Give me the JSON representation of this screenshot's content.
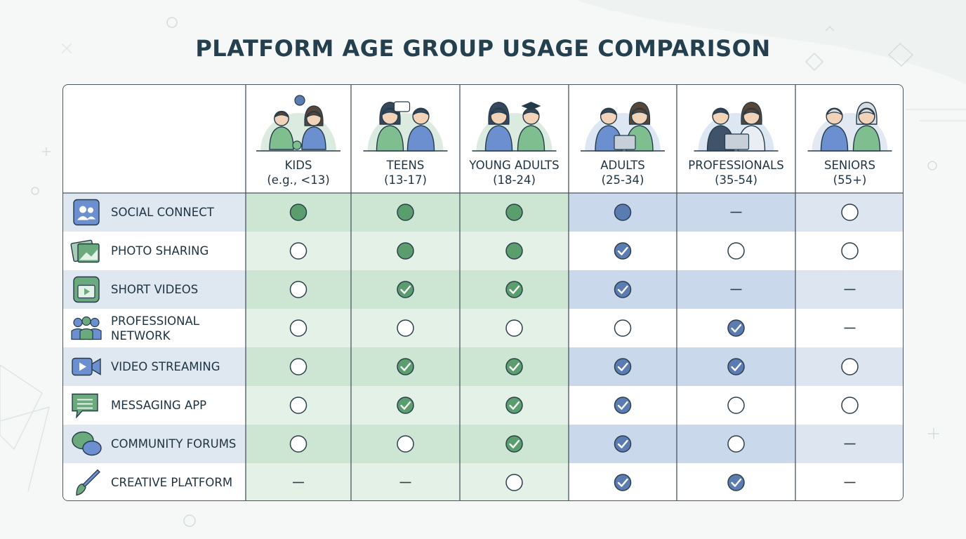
{
  "chart_data": {
    "type": "table",
    "title": "PLATFORM AGE GROUP USAGE COMPARISON",
    "legend_key": {
      "filled": "solid filled circle",
      "check": "filled circle with check mark",
      "empty": "empty outlined circle",
      "none": "dash (—)"
    },
    "columns": [
      {
        "label": "KIDS",
        "range": "(e.g., <13)",
        "icon": "kids-playing-icon",
        "theme": "green"
      },
      {
        "label": "TEENS",
        "range": "(13-17)",
        "icon": "teens-phones-icon",
        "theme": "green"
      },
      {
        "label": "YOUNG ADULTS",
        "range": "(18-24)",
        "icon": "graduates-icon",
        "theme": "green"
      },
      {
        "label": "ADULTS",
        "range": "(25-34)",
        "icon": "adults-laptop-icon",
        "theme": "blue"
      },
      {
        "label": "PROFESSIONALS",
        "range": "(35-54)",
        "icon": "professionals-laptop-icon",
        "theme": "blue"
      },
      {
        "label": "SENIORS",
        "range": "(55+)",
        "icon": "seniors-icon",
        "theme": "neutral"
      }
    ],
    "rows": [
      {
        "label": "SOCIAL CONNECT",
        "icon": "users-icon",
        "values": [
          "filled",
          "filled",
          "filled",
          "filled",
          "none",
          "empty"
        ]
      },
      {
        "label": "PHOTO SHARING",
        "icon": "photo-icon",
        "values": [
          "empty",
          "filled",
          "filled",
          "check",
          "empty",
          "empty"
        ]
      },
      {
        "label": "SHORT VIDEOS",
        "icon": "video-clip-icon",
        "values": [
          "empty",
          "check",
          "check",
          "check",
          "none",
          "none"
        ]
      },
      {
        "label": "PROFESSIONAL NETWORK",
        "icon": "team-icon",
        "values": [
          "empty",
          "empty",
          "empty",
          "empty",
          "check",
          "none"
        ]
      },
      {
        "label": "VIDEO STREAMING",
        "icon": "camera-icon",
        "values": [
          "empty",
          "check",
          "check",
          "check",
          "check",
          "empty"
        ]
      },
      {
        "label": "MESSAGING APP",
        "icon": "chat-icon",
        "values": [
          "empty",
          "check",
          "check",
          "check",
          "empty",
          "empty"
        ]
      },
      {
        "label": "COMMUNITY FORUMS",
        "icon": "forum-bubbles-icon",
        "values": [
          "empty",
          "empty",
          "check",
          "check",
          "empty",
          "none"
        ]
      },
      {
        "label": "CREATIVE PLATFORM",
        "icon": "paintbrush-icon",
        "values": [
          "none",
          "none",
          "empty",
          "check",
          "check",
          "none"
        ]
      }
    ],
    "colors": {
      "green": "#5a9e6e",
      "green_dark": "#2f6b44",
      "blue": "#5b7bb3",
      "blue_dark": "#2c4a7c",
      "title": "#24404f",
      "border": "#4a5560"
    }
  }
}
